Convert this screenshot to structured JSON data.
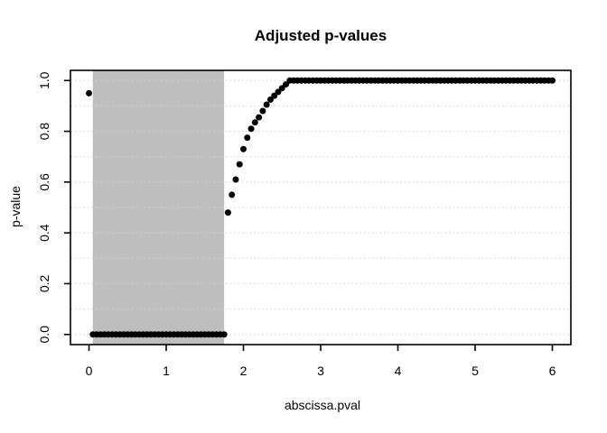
{
  "window": {
    "background": "#ffffff"
  },
  "chart_data": {
    "type": "scatter",
    "title": "Adjusted p-values",
    "xlabel": "abscissa.pval",
    "ylabel": "p-value",
    "xlim": [
      -0.24,
      6.24
    ],
    "ylim": [
      -0.04,
      1.04
    ],
    "x_ticks": [
      0,
      1,
      2,
      3,
      4,
      5,
      6
    ],
    "x_tick_labels": [
      "0",
      "1",
      "2",
      "3",
      "4",
      "5",
      "6"
    ],
    "y_ticks": [
      0,
      0.2,
      0.4,
      0.6,
      0.8,
      1
    ],
    "y_tick_labels": [
      "0.0",
      "0.2",
      "0.4",
      "0.6",
      "0.8",
      "1.0"
    ],
    "grid": {
      "orientation": "horizontal",
      "y_values": [
        0,
        0.1,
        0.2,
        0.3,
        0.4,
        0.5,
        0.6,
        0.7,
        0.8,
        0.9,
        1
      ],
      "style": "dotted",
      "color": "#d3d3d3"
    },
    "shaded_region": {
      "x0": 0.05,
      "x1": 1.75,
      "color": "#bebebe"
    },
    "point_style": {
      "shape": "filled-circle",
      "color": "#000000",
      "radius_px": 3.5
    },
    "box_color": "#000000",
    "points": [
      [
        0,
        0.95
      ],
      [
        0.05,
        0
      ],
      [
        0.1,
        0
      ],
      [
        0.15,
        0
      ],
      [
        0.2,
        0
      ],
      [
        0.25,
        0
      ],
      [
        0.3,
        0
      ],
      [
        0.35,
        0
      ],
      [
        0.4,
        0
      ],
      [
        0.45,
        0
      ],
      [
        0.5,
        0
      ],
      [
        0.55,
        0
      ],
      [
        0.6,
        0
      ],
      [
        0.65,
        0
      ],
      [
        0.7,
        0
      ],
      [
        0.75,
        0
      ],
      [
        0.8,
        0
      ],
      [
        0.85,
        0
      ],
      [
        0.9,
        0
      ],
      [
        0.95,
        0
      ],
      [
        1,
        0
      ],
      [
        1.05,
        0
      ],
      [
        1.1,
        0
      ],
      [
        1.15,
        0
      ],
      [
        1.2,
        0
      ],
      [
        1.25,
        0
      ],
      [
        1.3,
        0
      ],
      [
        1.35,
        0
      ],
      [
        1.4,
        0
      ],
      [
        1.45,
        0
      ],
      [
        1.5,
        0
      ],
      [
        1.55,
        0
      ],
      [
        1.6,
        0
      ],
      [
        1.65,
        0
      ],
      [
        1.7,
        0
      ],
      [
        1.75,
        0
      ],
      [
        1.8,
        0.48
      ],
      [
        1.85,
        0.55
      ],
      [
        1.9,
        0.61
      ],
      [
        1.95,
        0.67
      ],
      [
        2,
        0.73
      ],
      [
        2.05,
        0.775
      ],
      [
        2.1,
        0.81
      ],
      [
        2.15,
        0.835
      ],
      [
        2.2,
        0.855
      ],
      [
        2.25,
        0.88
      ],
      [
        2.3,
        0.905
      ],
      [
        2.35,
        0.925
      ],
      [
        2.4,
        0.94
      ],
      [
        2.45,
        0.955
      ],
      [
        2.5,
        0.97
      ],
      [
        2.55,
        0.985
      ],
      [
        2.6,
        1
      ],
      [
        2.65,
        1
      ],
      [
        2.7,
        1
      ],
      [
        2.75,
        1
      ],
      [
        2.8,
        1
      ],
      [
        2.85,
        1
      ],
      [
        2.9,
        1
      ],
      [
        2.95,
        1
      ],
      [
        3,
        1
      ],
      [
        3.05,
        1
      ],
      [
        3.1,
        1
      ],
      [
        3.15,
        1
      ],
      [
        3.2,
        1
      ],
      [
        3.25,
        1
      ],
      [
        3.3,
        1
      ],
      [
        3.35,
        1
      ],
      [
        3.4,
        1
      ],
      [
        3.45,
        1
      ],
      [
        3.5,
        1
      ],
      [
        3.55,
        1
      ],
      [
        3.6,
        1
      ],
      [
        3.65,
        1
      ],
      [
        3.7,
        1
      ],
      [
        3.75,
        1
      ],
      [
        3.8,
        1
      ],
      [
        3.85,
        1
      ],
      [
        3.9,
        1
      ],
      [
        3.95,
        1
      ],
      [
        4,
        1
      ],
      [
        4.05,
        1
      ],
      [
        4.1,
        1
      ],
      [
        4.15,
        1
      ],
      [
        4.2,
        1
      ],
      [
        4.25,
        1
      ],
      [
        4.3,
        1
      ],
      [
        4.35,
        1
      ],
      [
        4.4,
        1
      ],
      [
        4.45,
        1
      ],
      [
        4.5,
        1
      ],
      [
        4.55,
        1
      ],
      [
        4.6,
        1
      ],
      [
        4.65,
        1
      ],
      [
        4.7,
        1
      ],
      [
        4.75,
        1
      ],
      [
        4.8,
        1
      ],
      [
        4.85,
        1
      ],
      [
        4.9,
        1
      ],
      [
        4.95,
        1
      ],
      [
        5,
        1
      ],
      [
        5.05,
        1
      ],
      [
        5.1,
        1
      ],
      [
        5.15,
        1
      ],
      [
        5.2,
        1
      ],
      [
        5.25,
        1
      ],
      [
        5.3,
        1
      ],
      [
        5.35,
        1
      ],
      [
        5.4,
        1
      ],
      [
        5.45,
        1
      ],
      [
        5.5,
        1
      ],
      [
        5.55,
        1
      ],
      [
        5.6,
        1
      ],
      [
        5.65,
        1
      ],
      [
        5.7,
        1
      ],
      [
        5.75,
        1
      ],
      [
        5.8,
        1
      ],
      [
        5.85,
        1
      ],
      [
        5.9,
        1
      ],
      [
        5.95,
        1
      ],
      [
        6,
        1
      ]
    ]
  }
}
